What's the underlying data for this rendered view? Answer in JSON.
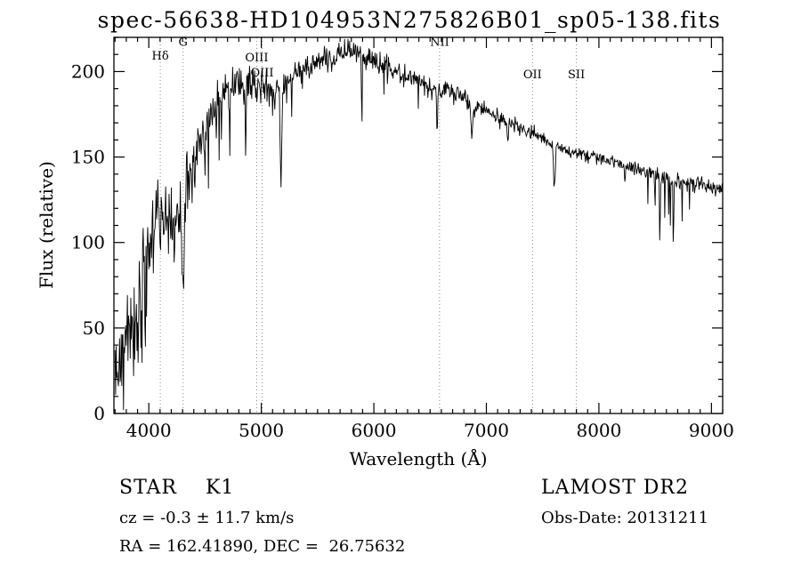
{
  "title": "spec-56638-HD104953N275826B01_sp05-138.fits",
  "annotations": {
    "object_class": "STAR    K1",
    "survey": "LAMOST DR2",
    "cz": "cz = -0.3 ± 11.7 km/s",
    "obs_date": "Obs-Date: 20131211",
    "radec": "RA = 162.41890, DEC =  26.75632"
  },
  "chart_data": {
    "type": "line",
    "title": "spec-56638-HD104953N275826B01_sp05-138.fits",
    "xlabel": "Wavelength (Å)",
    "ylabel": "Flux (relative)",
    "xlim": [
      3690,
      9100
    ],
    "ylim": [
      0,
      220
    ],
    "xticks": [
      4000,
      5000,
      6000,
      7000,
      8000,
      9000
    ],
    "yticks": [
      0,
      50,
      100,
      150,
      200
    ],
    "xtick_minor_step": 100,
    "ytick_minor_step": 10,
    "grid": false,
    "line_color": "#000000",
    "marked_lines": [
      {
        "label": "Hδ",
        "wavelength": 4102,
        "label_flux": 207
      },
      {
        "label": "G",
        "wavelength": 4305,
        "label_flux": 215
      },
      {
        "label": "OIII",
        "wavelength": 4959,
        "label_flux": 206
      },
      {
        "label": "OIII",
        "wavelength": 5007,
        "label_flux": 197
      },
      {
        "label": "NII",
        "wavelength": 6584,
        "label_flux": 215
      },
      {
        "label": "OII",
        "wavelength": 7410,
        "label_flux": 196
      },
      {
        "label": "SII",
        "wavelength": 7800,
        "label_flux": 196
      }
    ],
    "series": [
      {
        "name": "spectrum",
        "sample_step": 5,
        "continuum": [
          [
            3700,
            20
          ],
          [
            3740,
            42
          ],
          [
            3780,
            30
          ],
          [
            3820,
            50
          ],
          [
            3860,
            50
          ],
          [
            3900,
            60
          ],
          [
            3950,
            80
          ],
          [
            4000,
            103
          ],
          [
            4050,
            108
          ],
          [
            4100,
            112
          ],
          [
            4150,
            118
          ],
          [
            4200,
            112
          ],
          [
            4260,
            118
          ],
          [
            4300,
            120
          ],
          [
            4350,
            132
          ],
          [
            4400,
            150
          ],
          [
            4470,
            160
          ],
          [
            4520,
            168
          ],
          [
            4570,
            178
          ],
          [
            4620,
            186
          ],
          [
            4670,
            188
          ],
          [
            4720,
            186
          ],
          [
            4770,
            193
          ],
          [
            4820,
            192
          ],
          [
            4870,
            190
          ],
          [
            4920,
            193
          ],
          [
            4970,
            192
          ],
          [
            5010,
            196
          ],
          [
            5060,
            188
          ],
          [
            5110,
            192
          ],
          [
            5160,
            190
          ],
          [
            5210,
            193
          ],
          [
            5260,
            198
          ],
          [
            5320,
            200
          ],
          [
            5380,
            202
          ],
          [
            5440,
            203
          ],
          [
            5500,
            205
          ],
          [
            5560,
            208
          ],
          [
            5620,
            207
          ],
          [
            5680,
            210
          ],
          [
            5740,
            213
          ],
          [
            5800,
            212
          ],
          [
            5860,
            211
          ],
          [
            5920,
            210
          ],
          [
            5980,
            207
          ],
          [
            6040,
            203
          ],
          [
            6100,
            205
          ],
          [
            6160,
            202
          ],
          [
            6220,
            199
          ],
          [
            6280,
            197
          ],
          [
            6340,
            196
          ],
          [
            6400,
            196
          ],
          [
            6460,
            192
          ],
          [
            6520,
            188
          ],
          [
            6580,
            188
          ],
          [
            6640,
            190
          ],
          [
            6700,
            187
          ],
          [
            6760,
            186
          ],
          [
            6820,
            184
          ],
          [
            6880,
            178
          ],
          [
            6940,
            180
          ],
          [
            7000,
            177
          ],
          [
            7060,
            175
          ],
          [
            7120,
            173
          ],
          [
            7180,
            171
          ],
          [
            7240,
            169
          ],
          [
            7300,
            167
          ],
          [
            7360,
            165
          ],
          [
            7420,
            163
          ],
          [
            7480,
            161
          ],
          [
            7540,
            159
          ],
          [
            7600,
            156
          ],
          [
            7660,
            156
          ],
          [
            7720,
            154
          ],
          [
            7780,
            153
          ],
          [
            7840,
            152
          ],
          [
            7900,
            151
          ],
          [
            7960,
            150
          ],
          [
            8020,
            149
          ],
          [
            8080,
            148
          ],
          [
            8140,
            147
          ],
          [
            8200,
            146
          ],
          [
            8260,
            144
          ],
          [
            8320,
            143
          ],
          [
            8380,
            142
          ],
          [
            8440,
            141
          ],
          [
            8500,
            140
          ],
          [
            8560,
            138
          ],
          [
            8620,
            137
          ],
          [
            8680,
            136
          ],
          [
            8740,
            135
          ],
          [
            8800,
            134
          ],
          [
            8860,
            133
          ],
          [
            8920,
            134
          ],
          [
            8980,
            132
          ],
          [
            9040,
            132
          ],
          [
            9100,
            131
          ]
        ],
        "absorption_lines": [
          {
            "center": 3934,
            "depth": 45,
            "width": 7
          },
          {
            "center": 3969,
            "depth": 38,
            "width": 7
          },
          {
            "center": 4102,
            "depth": 22,
            "width": 6
          },
          {
            "center": 4227,
            "depth": 28,
            "width": 5
          },
          {
            "center": 4305,
            "depth": 48,
            "width": 14
          },
          {
            "center": 4384,
            "depth": 20,
            "width": 5
          },
          {
            "center": 4861,
            "depth": 38,
            "width": 5
          },
          {
            "center": 5175,
            "depth": 62,
            "width": 9
          },
          {
            "center": 5270,
            "depth": 22,
            "width": 5
          },
          {
            "center": 5893,
            "depth": 55,
            "width": 4
          },
          {
            "center": 6122,
            "depth": 12,
            "width": 4
          },
          {
            "center": 6563,
            "depth": 26,
            "width": 5
          },
          {
            "center": 6870,
            "depth": 20,
            "width": 9
          },
          {
            "center": 7190,
            "depth": 10,
            "width": 10
          },
          {
            "center": 7605,
            "depth": 24,
            "width": 11
          },
          {
            "center": 8230,
            "depth": 10,
            "width": 7
          },
          {
            "center": 8498,
            "depth": 22,
            "width": 4
          },
          {
            "center": 8542,
            "depth": 45,
            "width": 4
          },
          {
            "center": 8662,
            "depth": 42,
            "width": 4
          }
        ],
        "noise_amplitude": [
          [
            3700,
            22
          ],
          [
            3900,
            20
          ],
          [
            4100,
            15
          ],
          [
            4300,
            12
          ],
          [
            4500,
            9
          ],
          [
            4800,
            7
          ],
          [
            5100,
            6
          ],
          [
            5400,
            5
          ],
          [
            5800,
            4.5
          ],
          [
            6200,
            4
          ],
          [
            6600,
            3.5
          ],
          [
            7000,
            3
          ],
          [
            7600,
            2.5
          ],
          [
            8200,
            2.5
          ],
          [
            8700,
            3
          ],
          [
            9100,
            2.5
          ]
        ],
        "spike_zones": [
          {
            "range": [
              4350,
              5450
            ],
            "prob": 0.06,
            "dmin": 8,
            "dmax": 40
          },
          {
            "range": [
              5900,
              6550
            ],
            "prob": 0.04,
            "dmin": 5,
            "dmax": 22
          },
          {
            "range": [
              6600,
              7500
            ],
            "prob": 0.02,
            "dmin": 4,
            "dmax": 12
          },
          {
            "range": [
              8350,
              8850
            ],
            "prob": 0.03,
            "dmin": 6,
            "dmax": 25
          }
        ]
      }
    ]
  }
}
